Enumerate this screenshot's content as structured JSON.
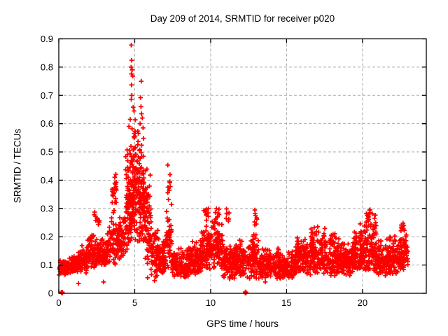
{
  "chart": {
    "title": "Day 209 of 2014, SRMTID for receiver p020",
    "xlabel": "GPS time / hours",
    "ylabel": "SRMTID / TECUs"
  },
  "chart_data": {
    "type": "scatter",
    "title": "Day 209 of 2014, SRMTID for receiver p020",
    "xlabel": "GPS time / hours",
    "ylabel": "SRMTID / TECUs",
    "xlim": [
      0,
      24.2
    ],
    "ylim": [
      0,
      0.9
    ],
    "xticks": [
      {
        "v": 0,
        "label": "0"
      },
      {
        "v": 5,
        "label": "5"
      },
      {
        "v": 10,
        "label": "10"
      },
      {
        "v": 15,
        "label": "15"
      },
      {
        "v": 20,
        "label": "20"
      }
    ],
    "yticks": [
      {
        "v": 0,
        "label": "0"
      },
      {
        "v": 0.1,
        "label": "0.1"
      },
      {
        "v": 0.2,
        "label": "0.2"
      },
      {
        "v": 0.3,
        "label": "0.3"
      },
      {
        "v": 0.4,
        "label": "0.4"
      },
      {
        "v": 0.5,
        "label": "0.5"
      },
      {
        "v": 0.6,
        "label": "0.6"
      },
      {
        "v": 0.7,
        "label": "0.7"
      },
      {
        "v": 0.8,
        "label": "0.8"
      },
      {
        "v": 0.9,
        "label": "0.9"
      }
    ],
    "grid": true,
    "legend": false,
    "marker": "plus",
    "marker_color": "#ff0000",
    "grid_color": "#ababab",
    "frame_color": "#000000",
    "seed": 1409,
    "envelope_segments": [
      [
        0.05,
        0.6,
        0.06,
        0.12,
        60
      ],
      [
        0.6,
        1.2,
        0.07,
        0.14,
        70
      ],
      [
        1.2,
        1.9,
        0.07,
        0.17,
        80
      ],
      [
        1.9,
        2.7,
        0.09,
        0.22,
        95
      ],
      [
        2.3,
        2.7,
        0.22,
        0.3,
        12
      ],
      [
        2.7,
        3.2,
        0.09,
        0.2,
        70
      ],
      [
        3.2,
        3.9,
        0.1,
        0.28,
        70
      ],
      [
        3.5,
        3.8,
        0.28,
        0.47,
        22
      ],
      [
        3.9,
        4.4,
        0.11,
        0.3,
        60
      ],
      [
        4.4,
        4.8,
        0.14,
        0.55,
        90
      ],
      [
        4.8,
        5.25,
        0.18,
        0.65,
        110
      ],
      [
        5.25,
        5.65,
        0.16,
        0.6,
        90
      ],
      [
        5.65,
        6.1,
        0.1,
        0.45,
        70
      ],
      [
        6.05,
        6.6,
        0.05,
        0.25,
        70
      ],
      [
        6.6,
        7.05,
        0.07,
        0.2,
        70
      ],
      [
        7.05,
        7.45,
        0.08,
        0.33,
        50
      ],
      [
        7.15,
        7.35,
        0.33,
        0.46,
        10
      ],
      [
        7.45,
        8.6,
        0.05,
        0.17,
        130
      ],
      [
        8.6,
        9.4,
        0.06,
        0.2,
        100
      ],
      [
        9.4,
        10.05,
        0.07,
        0.25,
        90
      ],
      [
        9.55,
        9.85,
        0.25,
        0.32,
        10
      ],
      [
        10.05,
        10.8,
        0.08,
        0.27,
        90
      ],
      [
        10.25,
        10.6,
        0.24,
        0.31,
        12
      ],
      [
        10.8,
        11.6,
        0.05,
        0.18,
        100
      ],
      [
        11.0,
        11.25,
        0.25,
        0.33,
        8
      ],
      [
        11.6,
        12.4,
        0.06,
        0.2,
        90
      ],
      [
        12.4,
        13.25,
        0.05,
        0.22,
        100
      ],
      [
        12.85,
        13.05,
        0.24,
        0.31,
        8
      ],
      [
        13.25,
        14.5,
        0.05,
        0.17,
        140
      ],
      [
        14.5,
        15.6,
        0.05,
        0.15,
        120
      ],
      [
        15.6,
        16.6,
        0.06,
        0.22,
        120
      ],
      [
        16.6,
        17.6,
        0.07,
        0.25,
        130
      ],
      [
        17.6,
        18.6,
        0.06,
        0.22,
        120
      ],
      [
        18.6,
        19.4,
        0.06,
        0.18,
        100
      ],
      [
        19.4,
        20.1,
        0.07,
        0.25,
        100
      ],
      [
        20.1,
        20.9,
        0.07,
        0.29,
        110
      ],
      [
        20.3,
        20.7,
        0.27,
        0.31,
        6
      ],
      [
        20.9,
        21.6,
        0.06,
        0.2,
        90
      ],
      [
        21.6,
        22.4,
        0.06,
        0.22,
        100
      ],
      [
        22.4,
        23.0,
        0.07,
        0.24,
        80
      ],
      [
        22.55,
        22.75,
        0.22,
        0.27,
        6
      ]
    ],
    "outliers_high": [
      [
        4.77,
        0.878
      ],
      [
        4.8,
        0.824
      ],
      [
        4.76,
        0.8
      ],
      [
        4.83,
        0.79
      ],
      [
        4.78,
        0.776
      ],
      [
        4.87,
        0.768
      ],
      [
        5.43,
        0.75
      ],
      [
        4.79,
        0.737
      ],
      [
        4.81,
        0.7
      ],
      [
        4.77,
        0.686
      ],
      [
        5.38,
        0.692
      ],
      [
        5.41,
        0.66
      ],
      [
        4.9,
        0.658
      ],
      [
        4.95,
        0.645
      ],
      [
        5.45,
        0.635
      ],
      [
        5.5,
        0.62
      ],
      [
        4.7,
        0.615
      ],
      [
        5.35,
        0.6
      ],
      [
        4.62,
        0.59
      ],
      [
        5.55,
        0.585
      ]
    ],
    "outliers_low": [
      [
        0.02,
        0.065
      ],
      [
        1.3,
        0.035
      ],
      [
        2.95,
        0.04
      ],
      [
        5.85,
        0.055
      ],
      [
        6.3,
        0.045
      ],
      [
        13.6,
        0.04
      ]
    ],
    "zero_clusters": [
      0.2,
      12.3
    ]
  }
}
